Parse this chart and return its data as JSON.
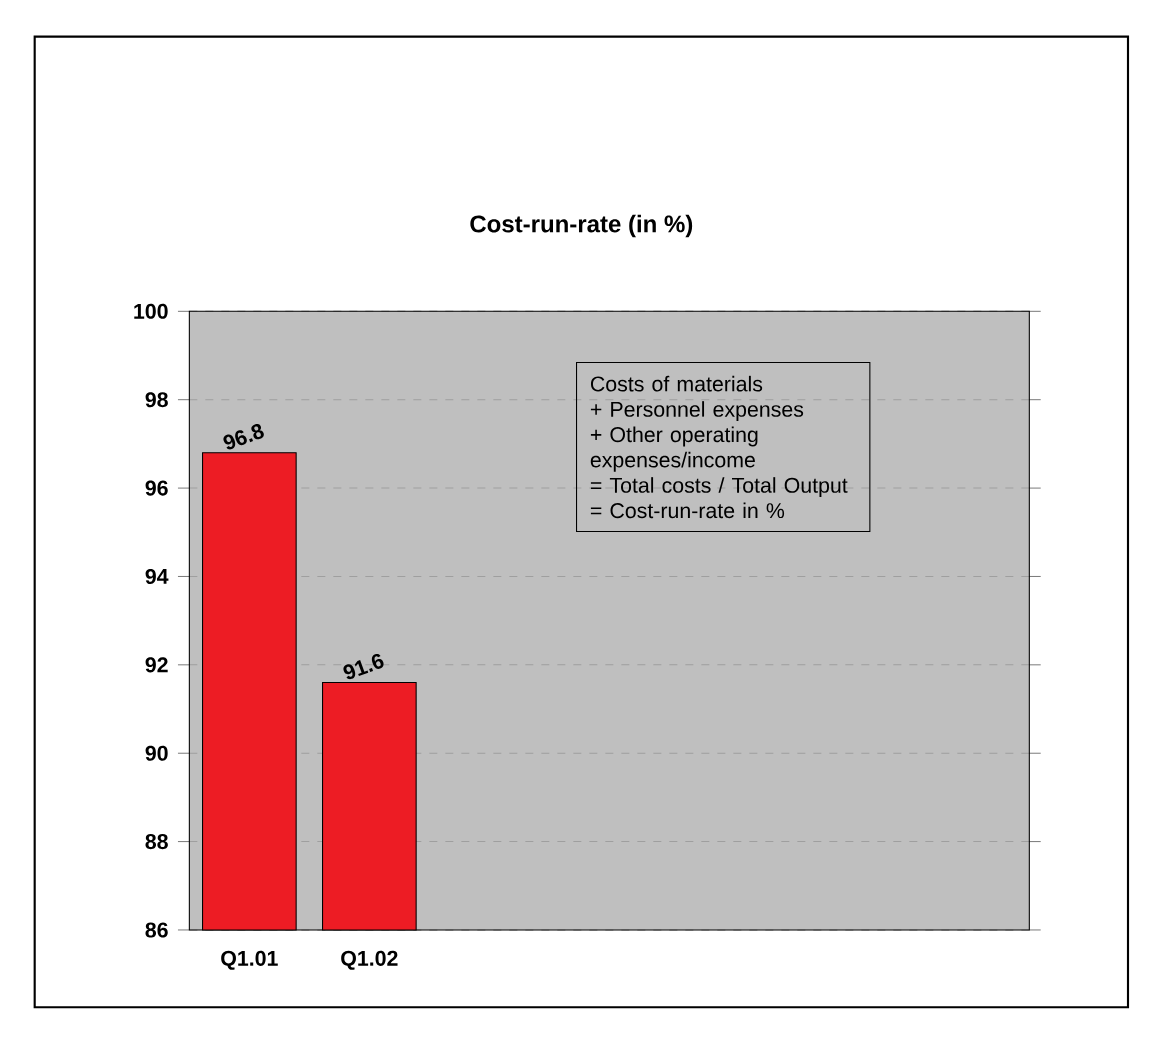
{
  "chart_data": {
    "type": "bar",
    "title": "Cost-run-rate (in %)",
    "categories": [
      "Q1.01",
      "Q1.02",
      null,
      null,
      null,
      null,
      null
    ],
    "values": [
      96.8,
      91.6,
      null,
      null,
      null,
      null,
      null
    ],
    "color": "#ed1c24",
    "ylim": [
      86,
      100
    ],
    "yticks": [
      86,
      88,
      90,
      92,
      94,
      96,
      98,
      100
    ],
    "grid": "y",
    "data_labels": true,
    "annotations": [
      "Costs of materials",
      "+ Personnel expenses",
      "+ Other operating expenses/income",
      "= Total costs / Total Output",
      "= Cost-run-rate in %"
    ]
  }
}
